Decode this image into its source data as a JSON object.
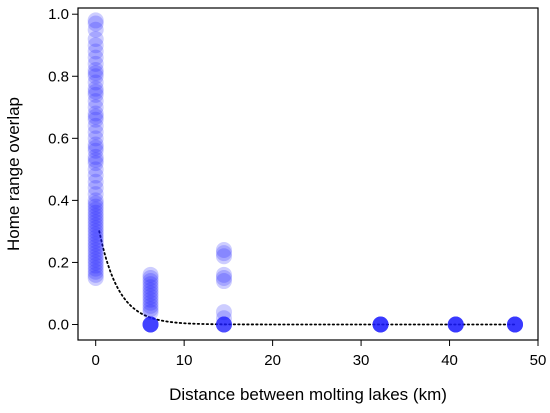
{
  "chart_data": {
    "type": "scatter",
    "xlabel": "Distance between molting lakes (km)",
    "ylabel": "Home range overlap",
    "xlim": [
      -2,
      50
    ],
    "ylim": [
      -0.05,
      1.02
    ],
    "xticks": [
      0,
      10,
      20,
      30,
      40,
      50
    ],
    "yticks": [
      0.0,
      0.2,
      0.4,
      0.6,
      0.8,
      1.0
    ],
    "xtick_labels": [
      "0",
      "10",
      "20",
      "30",
      "40",
      "50"
    ],
    "ytick_labels": [
      "0.0",
      "0.2",
      "0.4",
      "0.6",
      "0.8",
      "1.0"
    ],
    "point_color": "#1a1aff",
    "point_alpha": 0.22,
    "fit_line": {
      "style": "dotted",
      "color": "#000000",
      "a": 0.36,
      "k": 0.45,
      "x_start": 0.4,
      "x_end": 47.4
    },
    "points": [
      {
        "x": 0,
        "y": 0.98
      },
      {
        "x": 0,
        "y": 0.97
      },
      {
        "x": 0,
        "y": 0.95
      },
      {
        "x": 0,
        "y": 0.92
      },
      {
        "x": 0,
        "y": 0.9
      },
      {
        "x": 0,
        "y": 0.88
      },
      {
        "x": 0,
        "y": 0.86
      },
      {
        "x": 0,
        "y": 0.84
      },
      {
        "x": 0,
        "y": 0.82
      },
      {
        "x": 0,
        "y": 0.81
      },
      {
        "x": 0,
        "y": 0.8
      },
      {
        "x": 0,
        "y": 0.78
      },
      {
        "x": 0,
        "y": 0.76
      },
      {
        "x": 0,
        "y": 0.75
      },
      {
        "x": 0,
        "y": 0.74
      },
      {
        "x": 0,
        "y": 0.72
      },
      {
        "x": 0,
        "y": 0.7
      },
      {
        "x": 0,
        "y": 0.68
      },
      {
        "x": 0,
        "y": 0.67
      },
      {
        "x": 0,
        "y": 0.66
      },
      {
        "x": 0,
        "y": 0.64
      },
      {
        "x": 0,
        "y": 0.62
      },
      {
        "x": 0,
        "y": 0.6
      },
      {
        "x": 0,
        "y": 0.58
      },
      {
        "x": 0,
        "y": 0.57
      },
      {
        "x": 0,
        "y": 0.56
      },
      {
        "x": 0,
        "y": 0.54
      },
      {
        "x": 0,
        "y": 0.53
      },
      {
        "x": 0,
        "y": 0.52
      },
      {
        "x": 0,
        "y": 0.5
      },
      {
        "x": 0,
        "y": 0.48
      },
      {
        "x": 0,
        "y": 0.46
      },
      {
        "x": 0,
        "y": 0.44
      },
      {
        "x": 0,
        "y": 0.42
      },
      {
        "x": 0,
        "y": 0.4
      },
      {
        "x": 0,
        "y": 0.39
      },
      {
        "x": 0,
        "y": 0.38
      },
      {
        "x": 0,
        "y": 0.37
      },
      {
        "x": 0,
        "y": 0.36
      },
      {
        "x": 0,
        "y": 0.35
      },
      {
        "x": 0,
        "y": 0.34
      },
      {
        "x": 0,
        "y": 0.33
      },
      {
        "x": 0,
        "y": 0.32
      },
      {
        "x": 0,
        "y": 0.31
      },
      {
        "x": 0,
        "y": 0.3
      },
      {
        "x": 0,
        "y": 0.29
      },
      {
        "x": 0,
        "y": 0.28
      },
      {
        "x": 0,
        "y": 0.27
      },
      {
        "x": 0,
        "y": 0.26
      },
      {
        "x": 0,
        "y": 0.25
      },
      {
        "x": 0,
        "y": 0.24
      },
      {
        "x": 0,
        "y": 0.23
      },
      {
        "x": 0,
        "y": 0.22
      },
      {
        "x": 0,
        "y": 0.21
      },
      {
        "x": 0,
        "y": 0.2
      },
      {
        "x": 0,
        "y": 0.19
      },
      {
        "x": 0,
        "y": 0.18
      },
      {
        "x": 0,
        "y": 0.17
      },
      {
        "x": 0,
        "y": 0.16
      },
      {
        "x": 0,
        "y": 0.15
      },
      {
        "x": 6.2,
        "y": 0.16
      },
      {
        "x": 6.2,
        "y": 0.15
      },
      {
        "x": 6.2,
        "y": 0.14
      },
      {
        "x": 6.2,
        "y": 0.13
      },
      {
        "x": 6.2,
        "y": 0.12
      },
      {
        "x": 6.2,
        "y": 0.11
      },
      {
        "x": 6.2,
        "y": 0.1
      },
      {
        "x": 6.2,
        "y": 0.09
      },
      {
        "x": 6.2,
        "y": 0.08
      },
      {
        "x": 6.2,
        "y": 0.07
      },
      {
        "x": 6.2,
        "y": 0.06
      },
      {
        "x": 6.2,
        "y": 0.05
      },
      {
        "x": 6.2,
        "y": 0.04
      },
      {
        "x": 6.2,
        "y": 0.0
      },
      {
        "x": 6.2,
        "y": 0.0
      },
      {
        "x": 6.2,
        "y": 0.0
      },
      {
        "x": 6.2,
        "y": 0.0
      },
      {
        "x": 6.2,
        "y": 0.0
      },
      {
        "x": 6.2,
        "y": 0.0
      },
      {
        "x": 6.2,
        "y": 0.0
      },
      {
        "x": 14.5,
        "y": 0.24
      },
      {
        "x": 14.5,
        "y": 0.23
      },
      {
        "x": 14.5,
        "y": 0.22
      },
      {
        "x": 14.5,
        "y": 0.16
      },
      {
        "x": 14.5,
        "y": 0.15
      },
      {
        "x": 14.5,
        "y": 0.14
      },
      {
        "x": 14.5,
        "y": 0.04
      },
      {
        "x": 14.5,
        "y": 0.02
      },
      {
        "x": 14.5,
        "y": 0.0
      },
      {
        "x": 14.5,
        "y": 0.0
      },
      {
        "x": 14.5,
        "y": 0.0
      },
      {
        "x": 14.5,
        "y": 0.0
      },
      {
        "x": 14.5,
        "y": 0.0
      },
      {
        "x": 14.5,
        "y": 0.0
      },
      {
        "x": 32.2,
        "y": 0.0
      },
      {
        "x": 32.2,
        "y": 0.0
      },
      {
        "x": 32.2,
        "y": 0.0
      },
      {
        "x": 32.2,
        "y": 0.0
      },
      {
        "x": 32.2,
        "y": 0.0
      },
      {
        "x": 32.2,
        "y": 0.0
      },
      {
        "x": 32.2,
        "y": 0.0
      },
      {
        "x": 32.2,
        "y": 0.0
      },
      {
        "x": 40.7,
        "y": 0.0
      },
      {
        "x": 40.7,
        "y": 0.0
      },
      {
        "x": 40.7,
        "y": 0.0
      },
      {
        "x": 40.7,
        "y": 0.0
      },
      {
        "x": 40.7,
        "y": 0.0
      },
      {
        "x": 40.7,
        "y": 0.0
      },
      {
        "x": 40.7,
        "y": 0.0
      },
      {
        "x": 40.7,
        "y": 0.0
      },
      {
        "x": 47.4,
        "y": 0.0
      },
      {
        "x": 47.4,
        "y": 0.0
      },
      {
        "x": 47.4,
        "y": 0.0
      },
      {
        "x": 47.4,
        "y": 0.0
      },
      {
        "x": 47.4,
        "y": 0.0
      },
      {
        "x": 47.4,
        "y": 0.0
      },
      {
        "x": 47.4,
        "y": 0.0
      },
      {
        "x": 47.4,
        "y": 0.0
      }
    ]
  }
}
